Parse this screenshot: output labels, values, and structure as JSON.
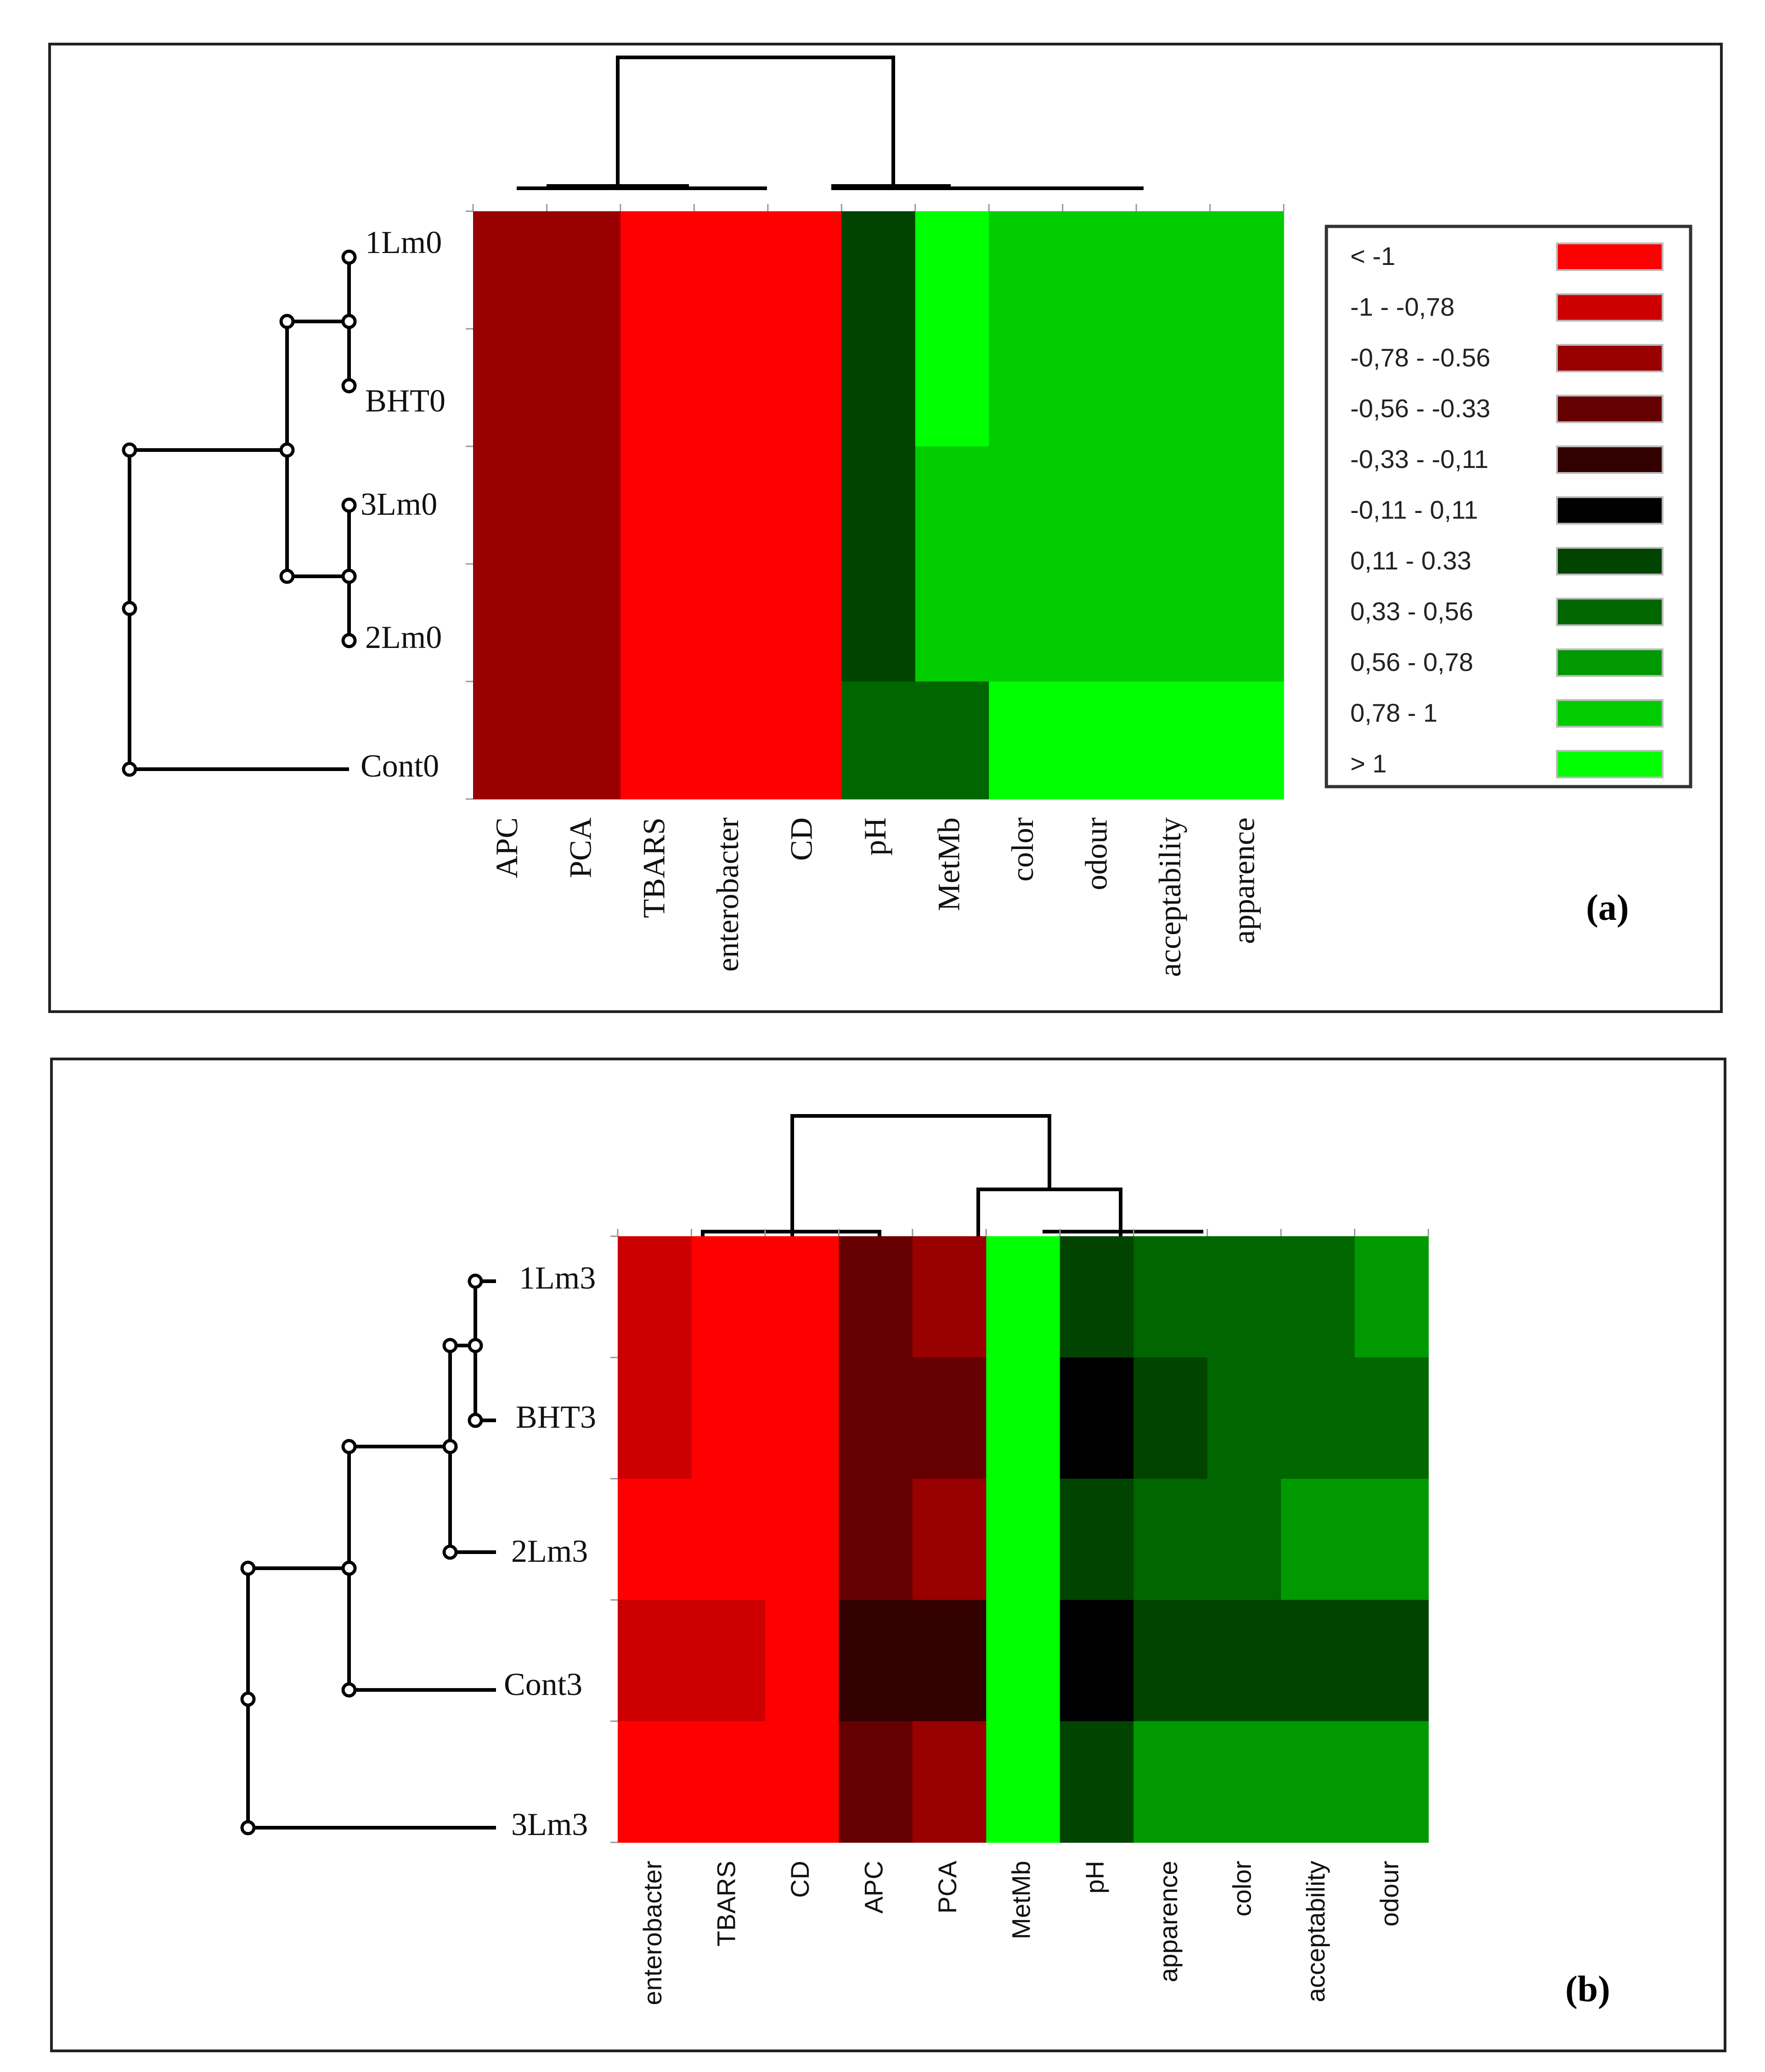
{
  "legend": {
    "items": [
      {
        "label": "< -1",
        "color": "#ff0000"
      },
      {
        "label": "-1 - -0,78",
        "color": "#cc0000"
      },
      {
        "label": "-0,78 - -0.56",
        "color": "#990000"
      },
      {
        "label": "-0,56 - -0.33",
        "color": "#660000"
      },
      {
        "label": "-0,33 - -0,11",
        "color": "#330000"
      },
      {
        "label": "-0,11 - 0,11",
        "color": "#000000"
      },
      {
        "label": "0,11 - 0.33",
        "color": "#004400"
      },
      {
        "label": "0,33 - 0,56",
        "color": "#006600"
      },
      {
        "label": "0,56 - 0,78",
        "color": "#009900"
      },
      {
        "label": "0,78 - 1",
        "color": "#00cc00"
      },
      {
        "label": "> 1",
        "color": "#00ff00"
      }
    ]
  },
  "chart_data": [
    {
      "type": "heatmap",
      "panel_label": "(a)",
      "rows": [
        "1Lm0",
        "BHT0",
        "3Lm0",
        "2Lm0",
        "Cont0"
      ],
      "columns": [
        "APC",
        "PCA",
        "TBARS",
        "enterobacter",
        "CD",
        "pH",
        "MetMb",
        "color",
        "odour",
        "acceptability",
        "apparence"
      ],
      "bin_scale": [
        "< -1",
        "-1 - -0,78",
        "-0,78 - -0.56",
        "-0,56 - -0.33",
        "-0,33 - -0,11",
        "-0,11 - 0,11",
        "0,11 - 0.33",
        "0,33 - 0,56",
        "0,56 - 0,78",
        "0,78 - 1",
        "> 1"
      ],
      "cells": [
        [
          "-0,78 - -0.56",
          "-0,78 - -0.56",
          "< -1",
          "< -1",
          "< -1",
          "0,11 - 0.33",
          "> 1",
          "0,78 - 1",
          "0,78 - 1",
          "0,78 - 1",
          "0,78 - 1"
        ],
        [
          "-0,78 - -0.56",
          "-0,78 - -0.56",
          "< -1",
          "< -1",
          "< -1",
          "0,11 - 0.33",
          "> 1",
          "0,78 - 1",
          "0,78 - 1",
          "0,78 - 1",
          "0,78 - 1"
        ],
        [
          "-0,78 - -0.56",
          "-0,78 - -0.56",
          "< -1",
          "< -1",
          "< -1",
          "0,11 - 0.33",
          "0,78 - 1",
          "0,78 - 1",
          "0,78 - 1",
          "0,78 - 1",
          "0,78 - 1"
        ],
        [
          "-0,78 - -0.56",
          "-0,78 - -0.56",
          "< -1",
          "< -1",
          "< -1",
          "0,11 - 0.33",
          "0,78 - 1",
          "0,78 - 1",
          "0,78 - 1",
          "0,78 - 1",
          "0,78 - 1"
        ],
        [
          "-0,78 - -0.56",
          "-0,78 - -0.56",
          "< -1",
          "< -1",
          "< -1",
          "0,33 - 0,56",
          "0,33 - 0,56",
          "> 1",
          "> 1",
          "> 1",
          "> 1"
        ]
      ],
      "row_dendrogram": "(((1Lm0,BHT0),(3Lm0,2Lm0)),Cont0)",
      "column_dendrogram": "((APC,PCA,TBARS,enterobacter,CD),(pH,MetMb,color,odour,acceptability,apparence))"
    },
    {
      "type": "heatmap",
      "panel_label": "(b)",
      "rows": [
        "1Lm3",
        "BHT3",
        "2Lm3",
        "Cont3",
        "3Lm3"
      ],
      "columns": [
        "enterobacter",
        "TBARS",
        "CD",
        "APC",
        "PCA",
        "MetMb",
        "pH",
        "apparence",
        "color",
        "acceptability",
        "odour"
      ],
      "bin_scale": [
        "< -1",
        "-1 - -0,78",
        "-0,78 - -0.56",
        "-0,56 - -0.33",
        "-0,33 - -0,11",
        "-0,11 - 0,11",
        "0,11 - 0.33",
        "0,33 - 0,56",
        "0,56 - 0,78",
        "0,78 - 1",
        "> 1"
      ],
      "cells": [
        [
          "-1 - -0,78",
          "< -1",
          "< -1",
          "-0,56 - -0.33",
          "-0,78 - -0.56",
          "> 1",
          "0,11 - 0.33",
          "0,33 - 0,56",
          "0,33 - 0,56",
          "0,33 - 0,56",
          "0,56 - 0,78"
        ],
        [
          "-1 - -0,78",
          "< -1",
          "< -1",
          "-0,56 - -0.33",
          "-0,56 - -0.33",
          "> 1",
          "-0,11 - 0,11",
          "0,11 - 0.33",
          "0,33 - 0,56",
          "0,33 - 0,56",
          "0,33 - 0,56"
        ],
        [
          "< -1",
          "< -1",
          "< -1",
          "-0,56 - -0.33",
          "-0,78 - -0.56",
          "> 1",
          "0,11 - 0.33",
          "0,33 - 0,56",
          "0,33 - 0,56",
          "0,56 - 0,78",
          "0,56 - 0,78"
        ],
        [
          "-1 - -0,78",
          "-1 - -0,78",
          "< -1",
          "-0,33 - -0,11",
          "-0,33 - -0,11",
          "> 1",
          "-0,11 - 0,11",
          "0,11 - 0.33",
          "0,11 - 0.33",
          "0,11 - 0.33",
          "0,11 - 0.33"
        ],
        [
          "< -1",
          "< -1",
          "< -1",
          "-0,56 - -0.33",
          "-0,78 - -0.56",
          "> 1",
          "0,11 - 0.33",
          "0,56 - 0,78",
          "0,56 - 0,78",
          "0,56 - 0,78",
          "0,56 - 0,78"
        ]
      ],
      "row_dendrogram": "((((1Lm3,BHT3),2Lm3),Cont3),3Lm3)",
      "column_dendrogram": "((enterobacter,TBARS,CD,APC,PCA),(MetMb,(pH,apparence,color,acceptability,odour)))"
    }
  ]
}
